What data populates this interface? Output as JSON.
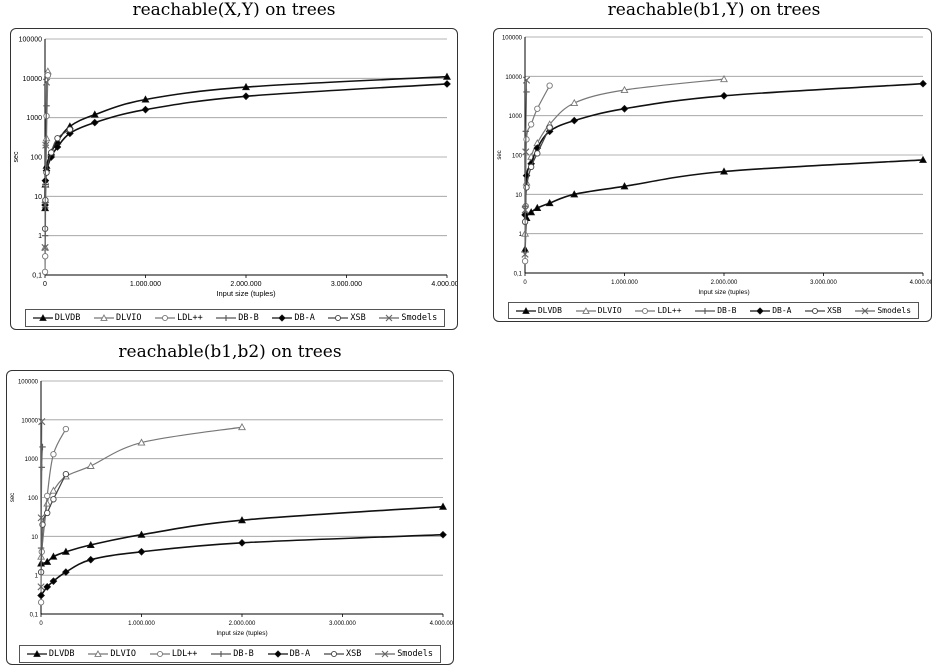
{
  "legend": [
    "DLVDB",
    "DLVIO",
    "LDL++",
    "DB-B",
    "DB-A",
    "XSB",
    "Smodels"
  ],
  "chart_data": [
    {
      "type": "line",
      "title": "reachable(X,Y) on trees",
      "xlabel": "Input size (tuples)",
      "ylabel": "sec",
      "y_scale": "log",
      "ylim": [
        0.1,
        100000
      ],
      "xlim": [
        0,
        4200000
      ],
      "y_ticks": [
        "0,1",
        "1",
        "10",
        "100",
        "1000",
        "10000",
        "100000"
      ],
      "x_ticks": [
        "0",
        "1.000.000",
        "2.000.000",
        "3.000.000",
        "4.000.000"
      ],
      "grid": true,
      "legend_position": "bottom",
      "series": [
        {
          "name": "DLVDB",
          "x": [
            1000,
            4000,
            16000,
            65000,
            130000,
            260000,
            520000,
            1050000,
            2100000,
            4200000
          ],
          "y": [
            5,
            20,
            60,
            130,
            250,
            600,
            1200,
            2900,
            6000,
            11000
          ]
        },
        {
          "name": "DLVIO",
          "x": [
            1000,
            4000,
            16000,
            30000
          ],
          "y": [
            0.5,
            8,
            300,
            15000
          ]
        },
        {
          "name": "LDL++",
          "x": [
            500,
            2000,
            8000,
            16000,
            30000
          ],
          "y": [
            0.12,
            0.3,
            20,
            1100,
            12000
          ]
        },
        {
          "name": "DB-B",
          "x": [
            1000,
            4000,
            8000,
            16000
          ],
          "y": [
            1,
            20,
            200,
            2000
          ]
        },
        {
          "name": "DB-A",
          "x": [
            1000,
            4000,
            16000,
            65000,
            130000,
            260000,
            520000,
            1050000,
            2100000,
            4200000
          ],
          "y": [
            6,
            25,
            45,
            100,
            180,
            400,
            750,
            1600,
            3500,
            7200
          ]
        },
        {
          "name": "XSB",
          "x": [
            1000,
            4000,
            16000,
            65000,
            130000,
            260000
          ],
          "y": [
            1.5,
            8,
            40,
            130,
            300,
            500
          ]
        },
        {
          "name": "Smodels",
          "x": [
            500,
            2000,
            8000,
            16000
          ],
          "y": [
            0.5,
            6,
            200,
            8000
          ]
        }
      ]
    },
    {
      "type": "line",
      "title": "reachable(b1,Y) on trees",
      "xlabel": "Input size (tuples)",
      "ylabel": "sec",
      "y_scale": "log",
      "ylim": [
        0.1,
        100000
      ],
      "xlim": [
        0,
        4200000
      ],
      "y_ticks": [
        "0,1",
        "1",
        "10",
        "100",
        "1000",
        "10000",
        "100000"
      ],
      "x_ticks": [
        "0",
        "1.000.000",
        "2.000.000",
        "3.000.000",
        "4.000.000"
      ],
      "grid": true,
      "legend_position": "bottom",
      "series": [
        {
          "name": "DLVDB",
          "x": [
            1000,
            16000,
            65000,
            130000,
            260000,
            520000,
            1050000,
            2100000,
            4200000
          ],
          "y": [
            0.4,
            2.5,
            3.5,
            4.5,
            6,
            10,
            16,
            38,
            75
          ]
        },
        {
          "name": "DLVIO",
          "x": [
            1000,
            16000,
            65000,
            130000,
            260000,
            520000,
            1050000,
            2100000
          ],
          "y": [
            1,
            20,
            90,
            200,
            600,
            2100,
            4500,
            8500
          ]
        },
        {
          "name": "LDL++",
          "x": [
            1000,
            8000,
            16000,
            65000,
            130000,
            260000
          ],
          "y": [
            0.2,
            5,
            250,
            600,
            1500,
            5800
          ]
        },
        {
          "name": "DB-B",
          "x": [
            1000,
            8000,
            16000
          ],
          "y": [
            5,
            400,
            4000
          ]
        },
        {
          "name": "DB-A",
          "x": [
            1000,
            16000,
            65000,
            130000,
            260000,
            520000,
            1050000,
            2100000,
            4200000
          ],
          "y": [
            3,
            30,
            60,
            150,
            400,
            750,
            1500,
            3200,
            6500
          ]
        },
        {
          "name": "XSB",
          "x": [
            1000,
            16000,
            65000,
            130000,
            260000
          ],
          "y": [
            2,
            15,
            50,
            110,
            500
          ]
        },
        {
          "name": "Smodels",
          "x": [
            500,
            2000,
            8000,
            16000
          ],
          "y": [
            0.3,
            4,
            120,
            8000
          ]
        }
      ]
    },
    {
      "type": "line",
      "title": "reachable(b1,b2) on trees",
      "xlabel": "Input size (tuples)",
      "ylabel": "sec",
      "y_scale": "log",
      "ylim": [
        0.1,
        100000
      ],
      "xlim": [
        0,
        4200000
      ],
      "y_ticks": [
        "0,1",
        "1",
        "10",
        "100",
        "1000",
        "10000",
        "100000"
      ],
      "x_ticks": [
        "0",
        "1.000.000",
        "2.000.000",
        "3.000.000",
        "4.000.000"
      ],
      "grid": true,
      "legend_position": "bottom",
      "series": [
        {
          "name": "DLVDB",
          "x": [
            1000,
            65000,
            130000,
            260000,
            520000,
            1050000,
            2100000,
            4200000
          ],
          "y": [
            2,
            2.2,
            3,
            4,
            6,
            11,
            26,
            58
          ]
        },
        {
          "name": "DLVIO",
          "x": [
            1000,
            65000,
            130000,
            260000,
            520000,
            1050000,
            2100000
          ],
          "y": [
            3,
            70,
            150,
            350,
            650,
            2600,
            6500
          ]
        },
        {
          "name": "LDL++",
          "x": [
            1000,
            8000,
            65000,
            130000,
            260000
          ],
          "y": [
            0.2,
            4,
            110,
            1300,
            5800
          ]
        },
        {
          "name": "DB-B",
          "x": [
            1000,
            8000,
            16000
          ],
          "y": [
            5,
            600,
            2000
          ]
        },
        {
          "name": "DB-A",
          "x": [
            1000,
            65000,
            130000,
            260000,
            520000,
            1050000,
            2100000,
            4200000
          ],
          "y": [
            0.3,
            0.5,
            0.7,
            1.2,
            2.5,
            4,
            6.8,
            11
          ]
        },
        {
          "name": "XSB",
          "x": [
            1000,
            16000,
            65000,
            130000,
            260000
          ],
          "y": [
            1.2,
            20,
            40,
            90,
            400
          ]
        },
        {
          "name": "Smodels",
          "x": [
            500,
            2000,
            8000
          ],
          "y": [
            0.5,
            30,
            9000
          ]
        }
      ]
    }
  ]
}
